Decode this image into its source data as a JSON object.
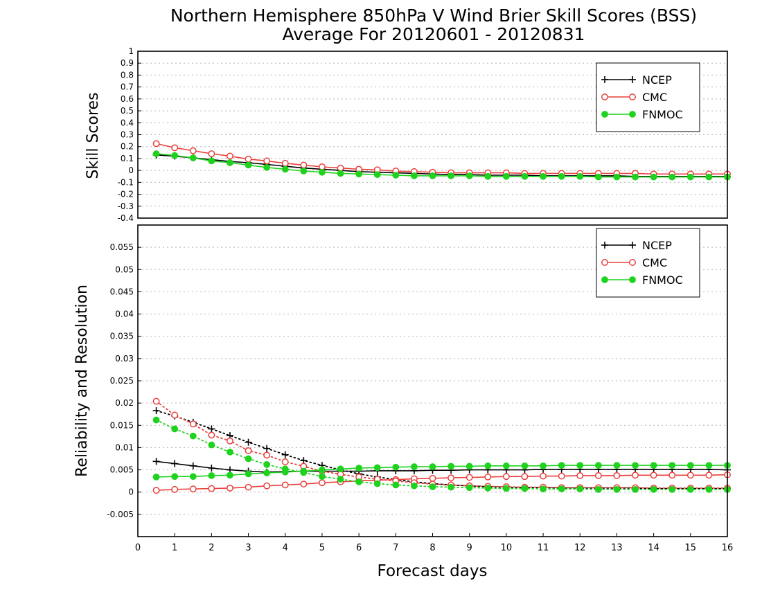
{
  "title": {
    "line1": "Northern Hemisphere 850hPa V Wind Brier Skill Scores (BSS)",
    "line2": "Average For 20120601 - 20120831"
  },
  "colors": {
    "NCEP": "#000000",
    "CMC": "#e8403c",
    "FNMOC": "#1ed21e",
    "grid": "#b4b4b4"
  },
  "chart_data": [
    {
      "type": "line",
      "ylabel": "Skill Scores",
      "xlim": [
        0,
        16
      ],
      "ylim": [
        -0.4,
        1
      ],
      "yticks": [
        "-0.4",
        "-0.3",
        "-0.2",
        "-0.1",
        "0",
        "0.1",
        "0.2",
        "0.3",
        "0.4",
        "0.5",
        "0.6",
        "0.7",
        "0.8",
        "0.9",
        "1"
      ],
      "grid": true,
      "legend_position": "top-right",
      "x": [
        0.5,
        1,
        1.5,
        2,
        2.5,
        3,
        3.5,
        4,
        4.5,
        5,
        5.5,
        6,
        6.5,
        7,
        7.5,
        8,
        8.5,
        9,
        9.5,
        10,
        10.5,
        11,
        11.5,
        12,
        12.5,
        13,
        13.5,
        14,
        14.5,
        15,
        15.5,
        16
      ],
      "series": [
        {
          "name": "NCEP",
          "marker": "plus",
          "style": "solid",
          "values": [
            0.13,
            0.12,
            0.105,
            0.09,
            0.075,
            0.065,
            0.05,
            0.035,
            0.02,
            0.01,
            0.0,
            -0.01,
            -0.015,
            -0.02,
            -0.025,
            -0.03,
            -0.035,
            -0.035,
            -0.04,
            -0.04,
            -0.04,
            -0.045,
            -0.045,
            -0.045,
            -0.045,
            -0.045,
            -0.05,
            -0.05,
            -0.05,
            -0.05,
            -0.05,
            -0.05
          ]
        },
        {
          "name": "CMC",
          "marker": "open-circle",
          "style": "solid",
          "values": [
            0.225,
            0.19,
            0.165,
            0.14,
            0.12,
            0.095,
            0.08,
            0.06,
            0.045,
            0.03,
            0.02,
            0.01,
            0.005,
            -0.005,
            -0.01,
            -0.015,
            -0.02,
            -0.02,
            -0.02,
            -0.02,
            -0.025,
            -0.025,
            -0.025,
            -0.025,
            -0.025,
            -0.025,
            -0.025,
            -0.03,
            -0.03,
            -0.03,
            -0.03,
            -0.03
          ]
        },
        {
          "name": "FNMOC",
          "marker": "filled-circle",
          "style": "solid",
          "values": [
            0.14,
            0.125,
            0.105,
            0.08,
            0.065,
            0.045,
            0.025,
            0.01,
            -0.005,
            -0.015,
            -0.025,
            -0.03,
            -0.035,
            -0.04,
            -0.045,
            -0.045,
            -0.045,
            -0.045,
            -0.05,
            -0.05,
            -0.05,
            -0.05,
            -0.05,
            -0.05,
            -0.055,
            -0.055,
            -0.055,
            -0.055,
            -0.055,
            -0.055,
            -0.055,
            -0.055
          ]
        }
      ]
    },
    {
      "type": "line",
      "ylabel": "Reliability and Resolution",
      "xlabel": "Forecast days",
      "xlim": [
        0,
        16
      ],
      "ylim": [
        -0.01,
        0.06
      ],
      "yticks": [
        "-0.005",
        "0",
        "0.005",
        "0.01",
        "0.015",
        "0.02",
        "0.025",
        "0.03",
        "0.035",
        "0.04",
        "0.045",
        "0.05",
        "0.055"
      ],
      "xticks": [
        "0",
        "1",
        "2",
        "3",
        "4",
        "5",
        "6",
        "7",
        "8",
        "9",
        "10",
        "11",
        "12",
        "13",
        "14",
        "15",
        "16"
      ],
      "grid": true,
      "legend_position": "top-right",
      "x": [
        0.5,
        1,
        1.5,
        2,
        2.5,
        3,
        3.5,
        4,
        4.5,
        5,
        5.5,
        6,
        6.5,
        7,
        7.5,
        8,
        8.5,
        9,
        9.5,
        10,
        10.5,
        11,
        11.5,
        12,
        12.5,
        13,
        13.5,
        14,
        14.5,
        15,
        15.5,
        16
      ],
      "series": [
        {
          "name": "NCEP",
          "metric": "resolution",
          "marker": "plus",
          "style": "solid",
          "values": [
            0.0069,
            0.0064,
            0.0059,
            0.0054,
            0.005,
            0.0047,
            0.0045,
            0.0046,
            0.0047,
            0.0047,
            0.0047,
            0.0047,
            0.0048,
            0.0048,
            0.0048,
            0.0049,
            0.0049,
            0.005,
            0.005,
            0.005,
            0.005,
            0.0051,
            0.0051,
            0.0051,
            0.0051,
            0.0051,
            0.0051,
            0.0051,
            0.0051,
            0.0051,
            0.0051,
            0.005
          ]
        },
        {
          "name": "NCEP",
          "metric": "reliability",
          "marker": "plus",
          "style": "dotted",
          "values": [
            0.0183,
            0.0171,
            0.0157,
            0.0142,
            0.0127,
            0.0112,
            0.0098,
            0.0084,
            0.0071,
            0.006,
            0.005,
            0.0041,
            0.0034,
            0.0028,
            0.0023,
            0.0019,
            0.0016,
            0.0014,
            0.0012,
            0.0011,
            0.001,
            0.001,
            0.0009,
            0.0009,
            0.0009,
            0.0009,
            0.0009,
            0.0008,
            0.0008,
            0.0008,
            0.0008,
            0.0008
          ]
        },
        {
          "name": "CMC",
          "metric": "resolution",
          "marker": "open-circle",
          "style": "solid",
          "values": [
            0.0004,
            0.0006,
            0.0007,
            0.0008,
            0.0009,
            0.0011,
            0.0014,
            0.0016,
            0.0018,
            0.0021,
            0.0023,
            0.0025,
            0.0027,
            0.0028,
            0.003,
            0.0031,
            0.0032,
            0.0033,
            0.0034,
            0.0035,
            0.0035,
            0.0036,
            0.0036,
            0.0037,
            0.0037,
            0.0037,
            0.0038,
            0.0038,
            0.0038,
            0.0038,
            0.0038,
            0.0039
          ]
        },
        {
          "name": "CMC",
          "metric": "reliability",
          "marker": "open-circle",
          "style": "dotted",
          "values": [
            0.0204,
            0.0173,
            0.0153,
            0.0128,
            0.0115,
            0.0093,
            0.0083,
            0.0068,
            0.0058,
            0.0047,
            0.004,
            0.0034,
            0.0029,
            0.0025,
            0.0021,
            0.0018,
            0.0016,
            0.0014,
            0.0013,
            0.0012,
            0.0011,
            0.0011,
            0.001,
            0.001,
            0.001,
            0.001,
            0.001,
            0.0009,
            0.0009,
            0.0009,
            0.0009,
            0.0009
          ]
        },
        {
          "name": "FNMOC",
          "metric": "resolution",
          "marker": "filled-circle",
          "style": "solid",
          "values": [
            0.0034,
            0.0035,
            0.0035,
            0.0037,
            0.0038,
            0.0041,
            0.0043,
            0.0045,
            0.0047,
            0.005,
            0.0052,
            0.0054,
            0.0055,
            0.0056,
            0.0057,
            0.0057,
            0.0058,
            0.0058,
            0.0059,
            0.0059,
            0.0059,
            0.0059,
            0.006,
            0.006,
            0.006,
            0.006,
            0.006,
            0.006,
            0.006,
            0.006,
            0.006,
            0.006
          ]
        },
        {
          "name": "FNMOC",
          "metric": "reliability",
          "marker": "filled-circle",
          "style": "dotted",
          "values": [
            0.0162,
            0.0142,
            0.0126,
            0.0106,
            0.009,
            0.0075,
            0.0062,
            0.0052,
            0.0044,
            0.0035,
            0.0029,
            0.0023,
            0.0019,
            0.0016,
            0.0014,
            0.0012,
            0.0011,
            0.001,
            0.0009,
            0.0008,
            0.0008,
            0.0007,
            0.0007,
            0.0007,
            0.0006,
            0.0006,
            0.0006,
            0.0006,
            0.0006,
            0.0006,
            0.0006,
            0.0006
          ]
        }
      ]
    }
  ],
  "legend": [
    {
      "name": "NCEP",
      "marker": "plus"
    },
    {
      "name": "CMC",
      "marker": "open-circle"
    },
    {
      "name": "FNMOC",
      "marker": "filled-circle"
    }
  ]
}
